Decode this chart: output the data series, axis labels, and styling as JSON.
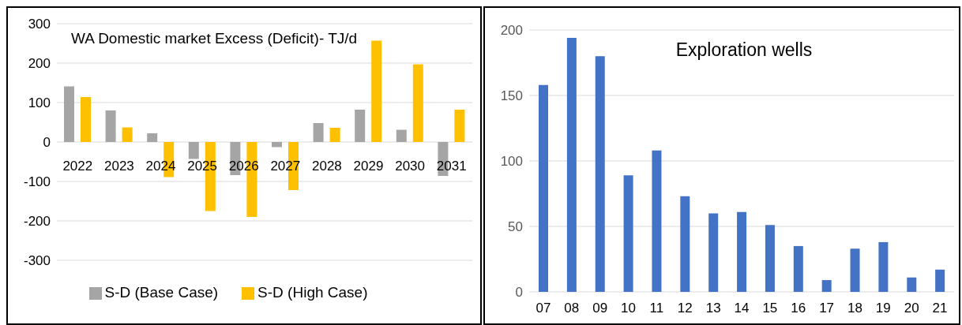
{
  "chart_data": [
    {
      "type": "bar",
      "title": "WA Domestic market Excess (Deficit)- TJ/d",
      "categories": [
        "2022",
        "2023",
        "2024",
        "2025",
        "2026",
        "2027",
        "2028",
        "2029",
        "2030",
        "2031"
      ],
      "series": [
        {
          "name": "S-D (Base Case)",
          "color": "#a5a5a5",
          "values": [
            141,
            80,
            22,
            -43,
            -84,
            -13,
            48,
            82,
            31,
            -86
          ]
        },
        {
          "name": "S-D (High Case)",
          "color": "#ffc000",
          "values": [
            114,
            37,
            -89,
            -175,
            -190,
            -122,
            36,
            257,
            197,
            82
          ]
        }
      ],
      "ylim": [
        -300,
        300
      ],
      "yticks": [
        -300,
        -200,
        -100,
        0,
        100,
        200,
        300
      ],
      "grid": "y",
      "legend": "bottom"
    },
    {
      "type": "bar",
      "title": "Exploration wells",
      "categories": [
        "07",
        "08",
        "09",
        "10",
        "11",
        "12",
        "13",
        "14",
        "15",
        "16",
        "17",
        "18",
        "19",
        "20",
        "21"
      ],
      "values": [
        158,
        194,
        180,
        89,
        108,
        73,
        60,
        61,
        51,
        35,
        9,
        33,
        38,
        11,
        17
      ],
      "color": "#4472c4",
      "ylim": [
        0,
        200
      ],
      "yticks": [
        0,
        50,
        100,
        150,
        200
      ],
      "grid": "y"
    }
  ]
}
